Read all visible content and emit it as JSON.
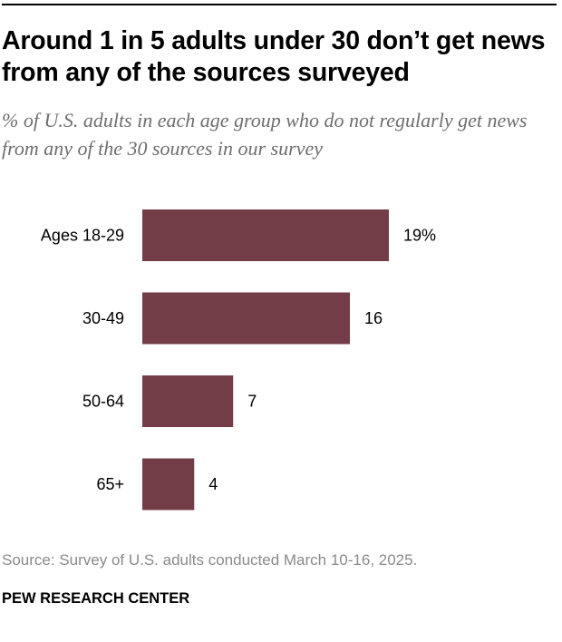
{
  "header": {
    "title": "Around 1 in 5 adults under 30 don’t get news from any of the sources surveyed",
    "subtitle": "% of U.S. adults in each age group who do not regularly get news from any of the 30 sources in our survey"
  },
  "footer": {
    "source": "Source: Survey of U.S. adults conducted March 10-16, 2025.",
    "org": "PEW RESEARCH CENTER"
  },
  "colors": {
    "bar": "#733d47"
  },
  "chart_data": {
    "type": "bar",
    "orientation": "horizontal",
    "categories": [
      "Ages 18-29",
      "30-49",
      "50-64",
      "65+"
    ],
    "values": [
      19,
      16,
      7,
      4
    ],
    "value_labels": [
      "19%",
      "16",
      "7",
      "4"
    ],
    "title": "Around 1 in 5 adults under 30 don’t get news from any of the sources surveyed",
    "xlabel": "",
    "ylabel": "",
    "grid": false,
    "legend": "none"
  }
}
